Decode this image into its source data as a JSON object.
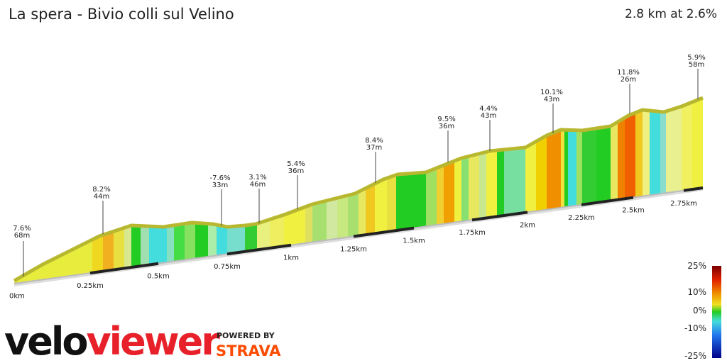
{
  "header": {
    "title": "La spera - Bivio colli sul Velino",
    "summary": "2.8 km at 2.6%"
  },
  "annotations": [
    {
      "grade": "7.6%",
      "length": "68m"
    },
    {
      "grade": "8.2%",
      "length": "44m"
    },
    {
      "grade": "-7.6%",
      "length": "33m"
    },
    {
      "grade": "3.1%",
      "length": "46m"
    },
    {
      "grade": "5.4%",
      "length": "36m"
    },
    {
      "grade": "8.4%",
      "length": "37m"
    },
    {
      "grade": "9.5%",
      "length": "36m"
    },
    {
      "grade": "4.4%",
      "length": "43m"
    },
    {
      "grade": "10.1%",
      "length": "43m"
    },
    {
      "grade": "11.8%",
      "length": "26m"
    },
    {
      "grade": "5.9%",
      "length": "58m"
    }
  ],
  "distance_labels": [
    "0km",
    "0.25km",
    "0.5km",
    "0.75km",
    "1km",
    "1.25km",
    "1.5km",
    "1.75km",
    "2km",
    "2.25km",
    "2.5km",
    "2.75km"
  ],
  "legend": {
    "labels": [
      "25%",
      "10%",
      "0%",
      "-10%",
      "-25%"
    ]
  },
  "branding": {
    "logo_velo": "velo",
    "logo_viewer": "viewer",
    "powered_by": "POWERED BY",
    "partner": "STRAVA"
  }
}
